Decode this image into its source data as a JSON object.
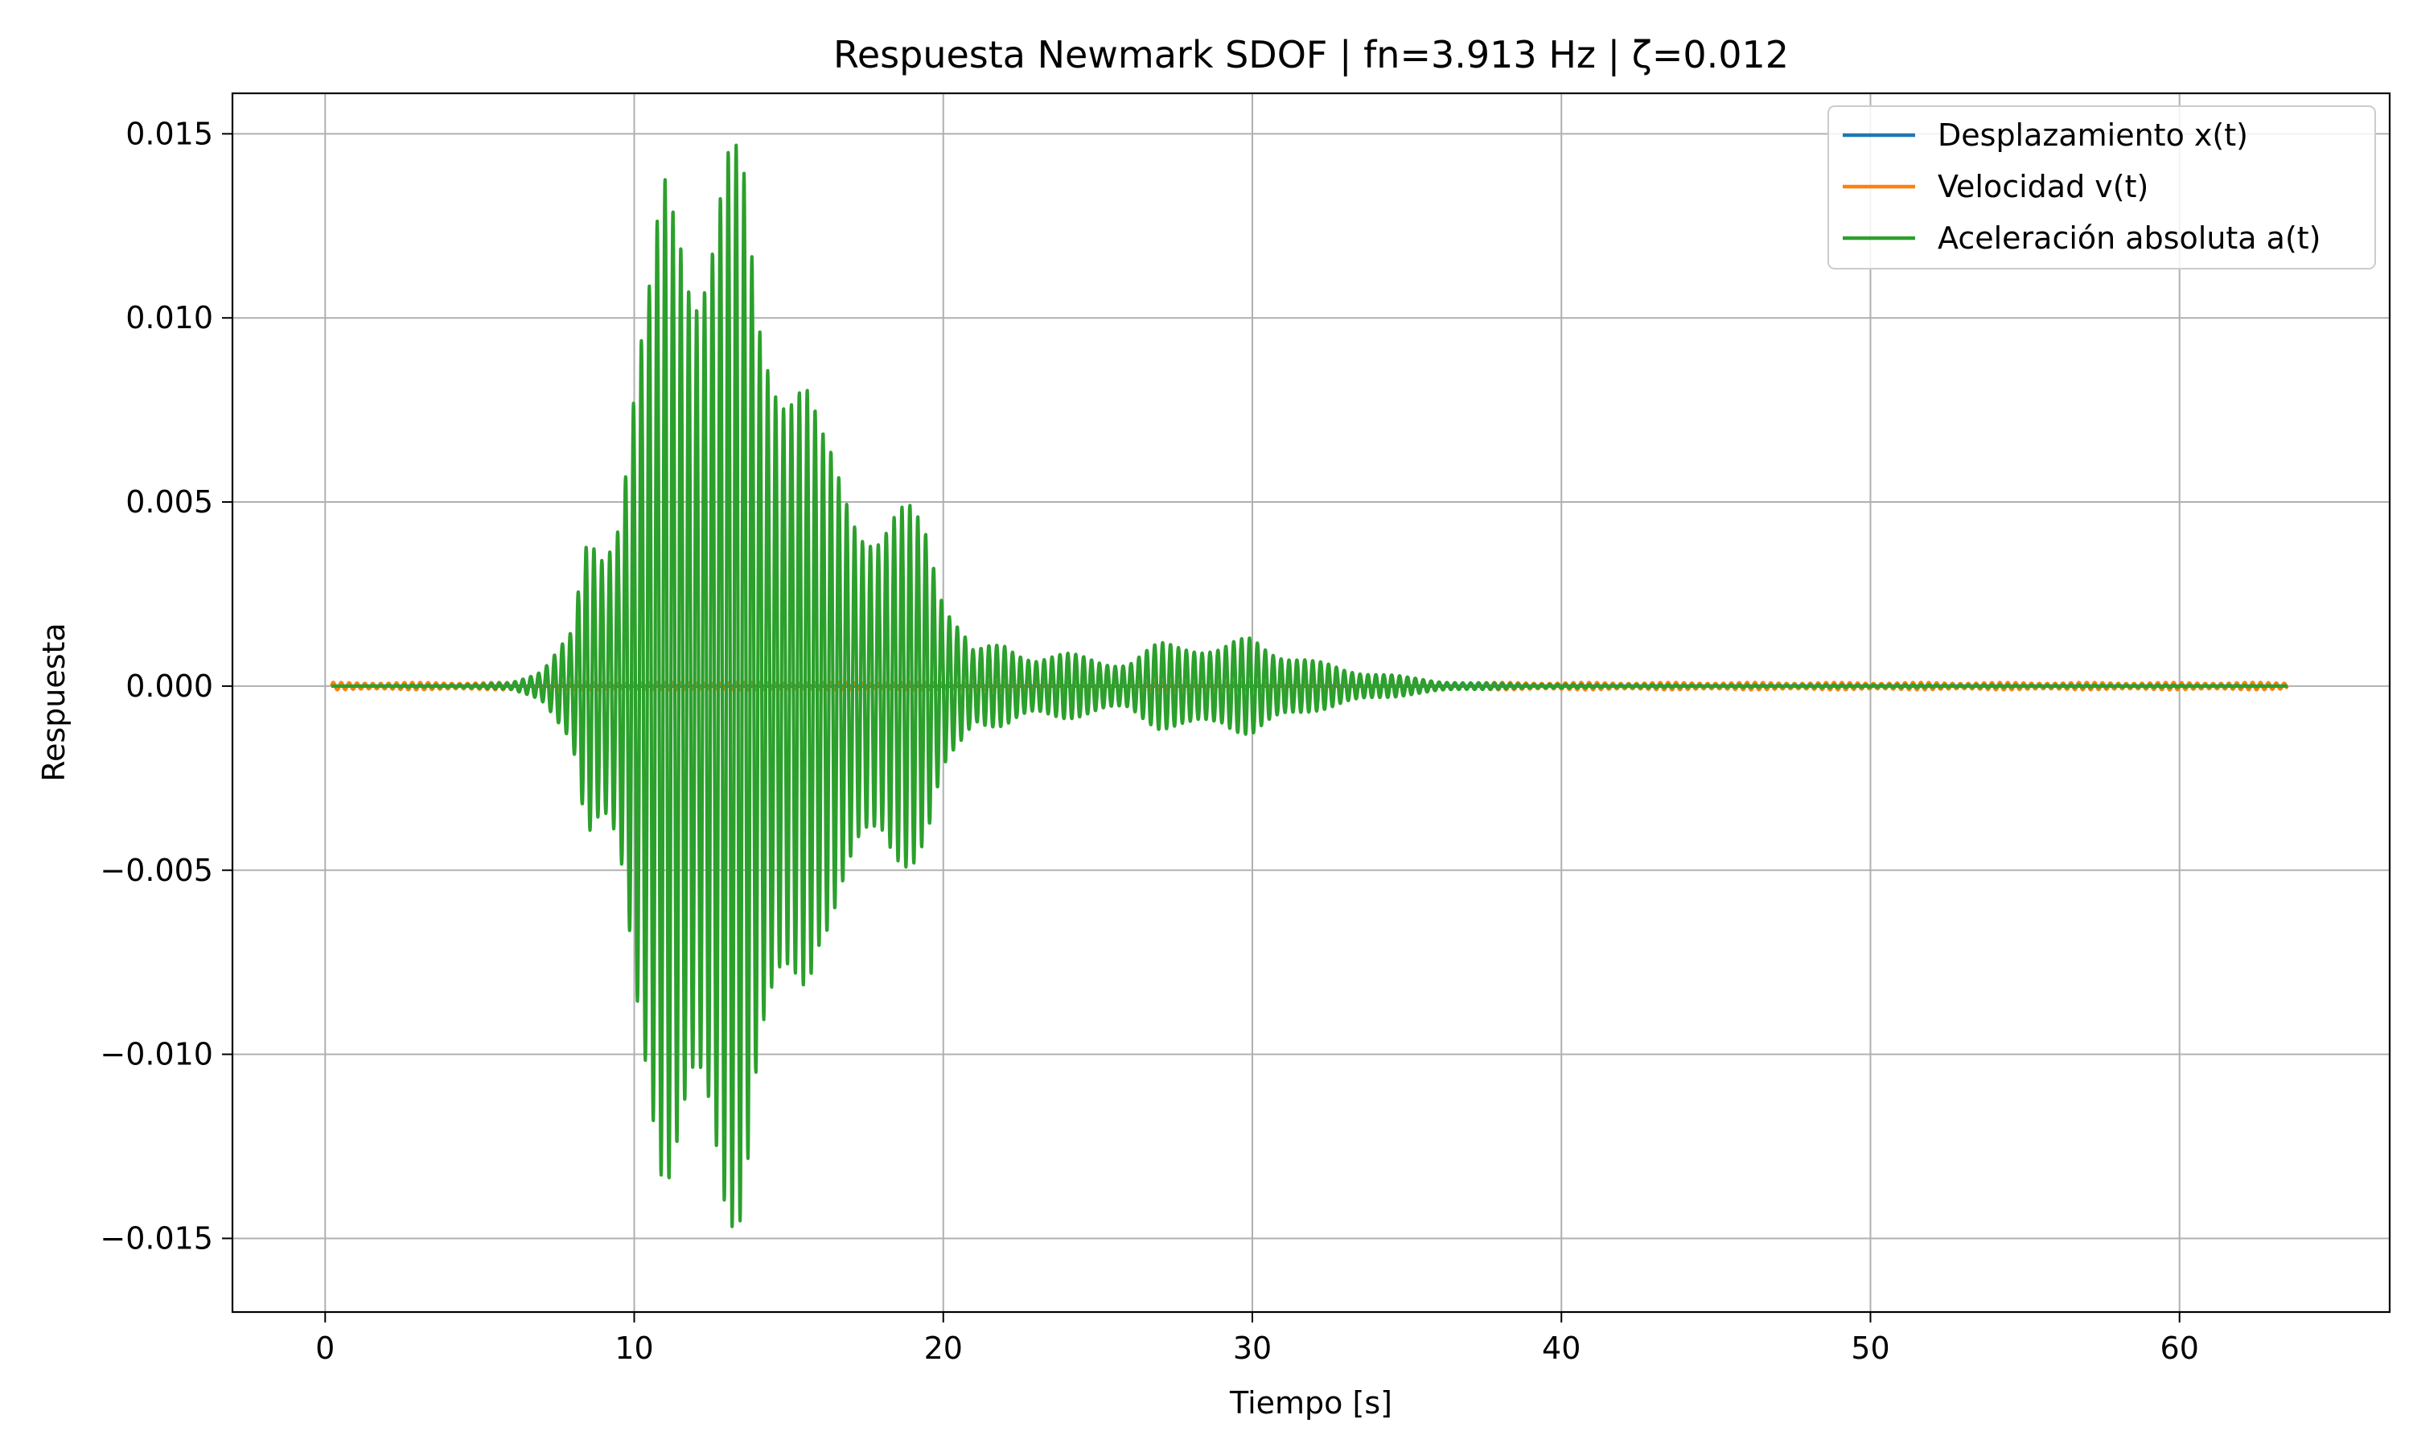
{
  "chart_data": {
    "type": "line",
    "title": "Respuesta Newmark SDOF | fn=3.913 Hz | ζ=0.012",
    "xlabel": "Tiempo [s]",
    "ylabel": "Respuesta",
    "xlim": [
      -3.0,
      66.8
    ],
    "ylim": [
      -0.017,
      0.0161
    ],
    "xticks": [
      0,
      10,
      20,
      30,
      40,
      50,
      60
    ],
    "xtick_labels": [
      "0",
      "10",
      "20",
      "30",
      "40",
      "50",
      "60"
    ],
    "yticks": [
      -0.015,
      -0.01,
      -0.005,
      0.0,
      0.005,
      0.01,
      0.015
    ],
    "ytick_labels": [
      "−0.015",
      "−0.010",
      "−0.005",
      "0.000",
      "0.005",
      "0.010",
      "0.015"
    ],
    "grid": true,
    "legend_position": "top-right",
    "series": [
      {
        "name": "Desplazamiento x(t)",
        "color": "#1f77b4",
        "envelope": {
          "t": [
            0.2,
            63.5
          ],
          "peak": 0.0
        }
      },
      {
        "name": "Velocidad v(t)",
        "color": "#ff7f0e",
        "envelope": {
          "t": [
            0.2,
            63.5
          ],
          "peak": 0.0001
        }
      },
      {
        "name": "Aceleración absoluta a(t)",
        "color": "#2ca02c",
        "dominant_frequency_hz": 3.913,
        "envelope": {
          "t": [
            0.2,
            5.0,
            6.0,
            7.0,
            8.0,
            8.5,
            9.0,
            9.5,
            10.0,
            10.5,
            11.0,
            11.5,
            12.0,
            12.5,
            13.0,
            13.5,
            14.0,
            14.5,
            15.0,
            15.5,
            16.0,
            17.0,
            18.0,
            19.0,
            19.5,
            20.0,
            21.0,
            22.0,
            23.0,
            24.0,
            25.0,
            26.0,
            27.0,
            28.0,
            29.0,
            30.0,
            31.0,
            32.0,
            33.0,
            34.0,
            35.0,
            36.0,
            37.0,
            38.0,
            40.0,
            45.0,
            50.0,
            55.0,
            60.0,
            63.5
          ],
          "peak": [
            0.0,
            5e-05,
            0.0001,
            0.0005,
            0.0015,
            0.0045,
            0.0045,
            0.0058,
            0.009,
            0.011,
            0.0145,
            0.015,
            0.0142,
            0.0143,
            0.015,
            0.0145,
            0.0115,
            0.011,
            0.01,
            0.009,
            0.007,
            0.006,
            0.0046,
            0.005,
            0.0048,
            0.003,
            0.001,
            0.0012,
            0.0009,
            0.0009,
            0.0008,
            0.0007,
            0.0012,
            0.0013,
            0.0011,
            0.0014,
            0.001,
            0.0007,
            0.0005,
            0.0004,
            0.00025,
            0.00015,
            0.0001,
            8e-05,
            5e-05,
            3e-05,
            4e-05,
            3e-05,
            3e-05,
            1e-05
          ]
        }
      }
    ]
  }
}
